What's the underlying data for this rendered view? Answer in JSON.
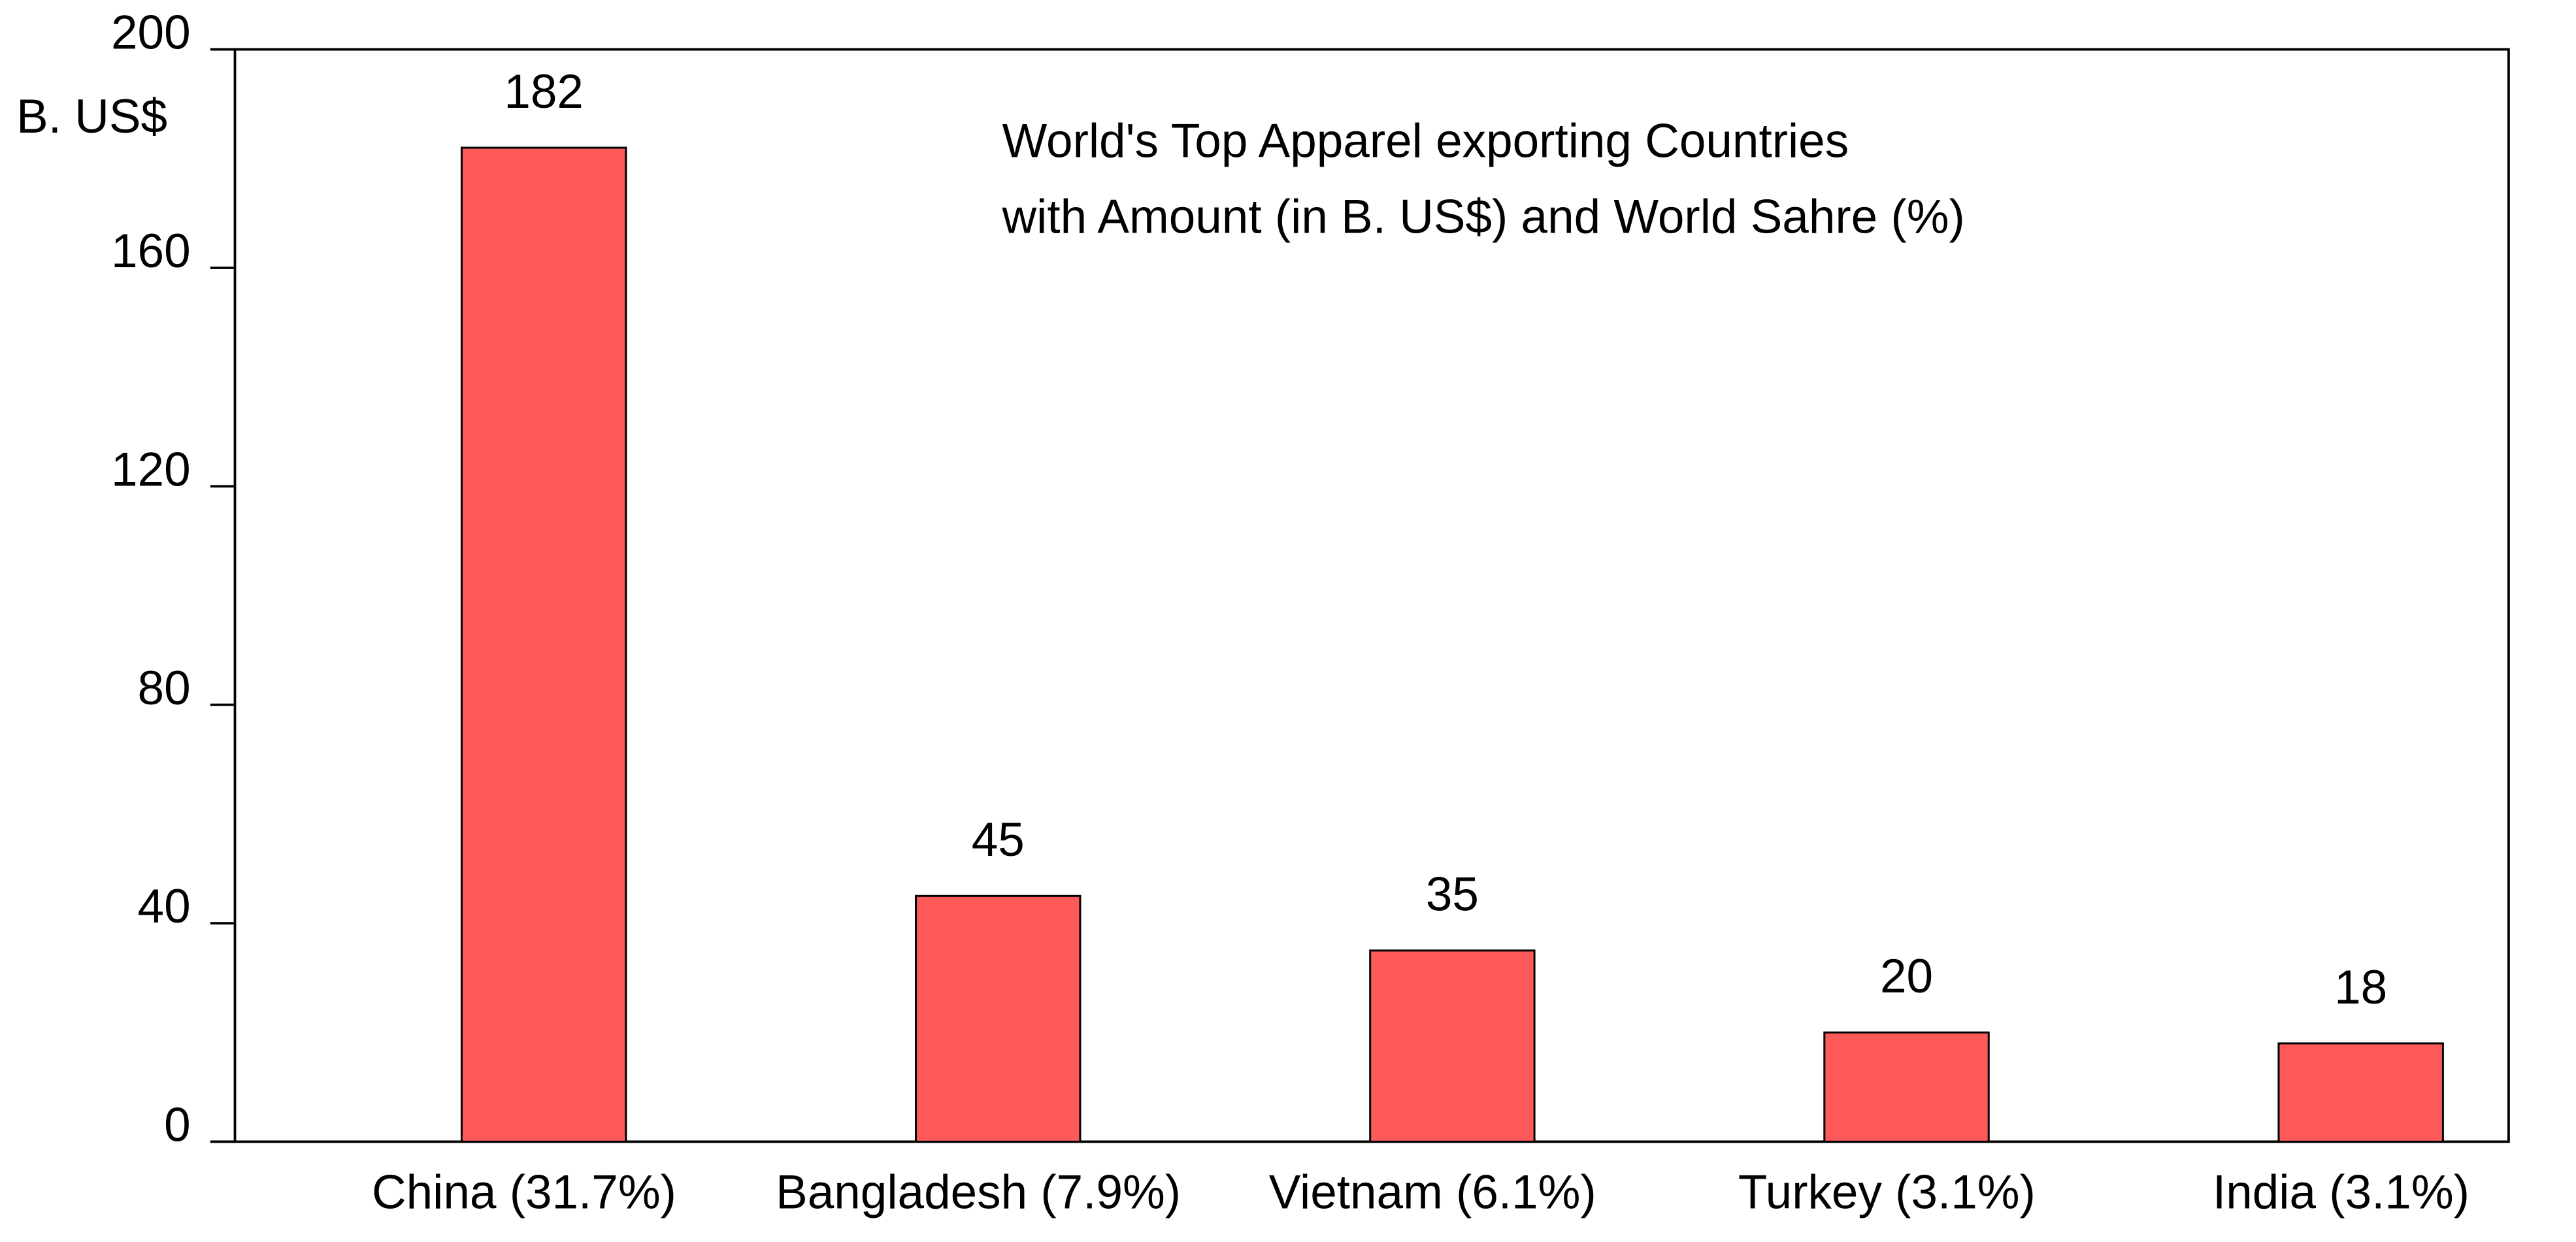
{
  "chart_data": {
    "type": "bar",
    "title": "World's Top Apparel exporting Countries",
    "subtitle": "with Amount (in B. US$) and World Sahre (%)",
    "y_label": "B. US$",
    "categories": [
      "China (31.7%)",
      "Bangladesh (7.9%)",
      "Vietnam (6.1%)",
      "Turkey (3.1%)",
      "India (3.1%)"
    ],
    "values": [
      182,
      45,
      35,
      20,
      18
    ],
    "color": "#ff5a5a",
    "ylim": [
      0,
      200
    ],
    "yticks": [
      0,
      40,
      80,
      120,
      160,
      200
    ],
    "grid": false
  }
}
